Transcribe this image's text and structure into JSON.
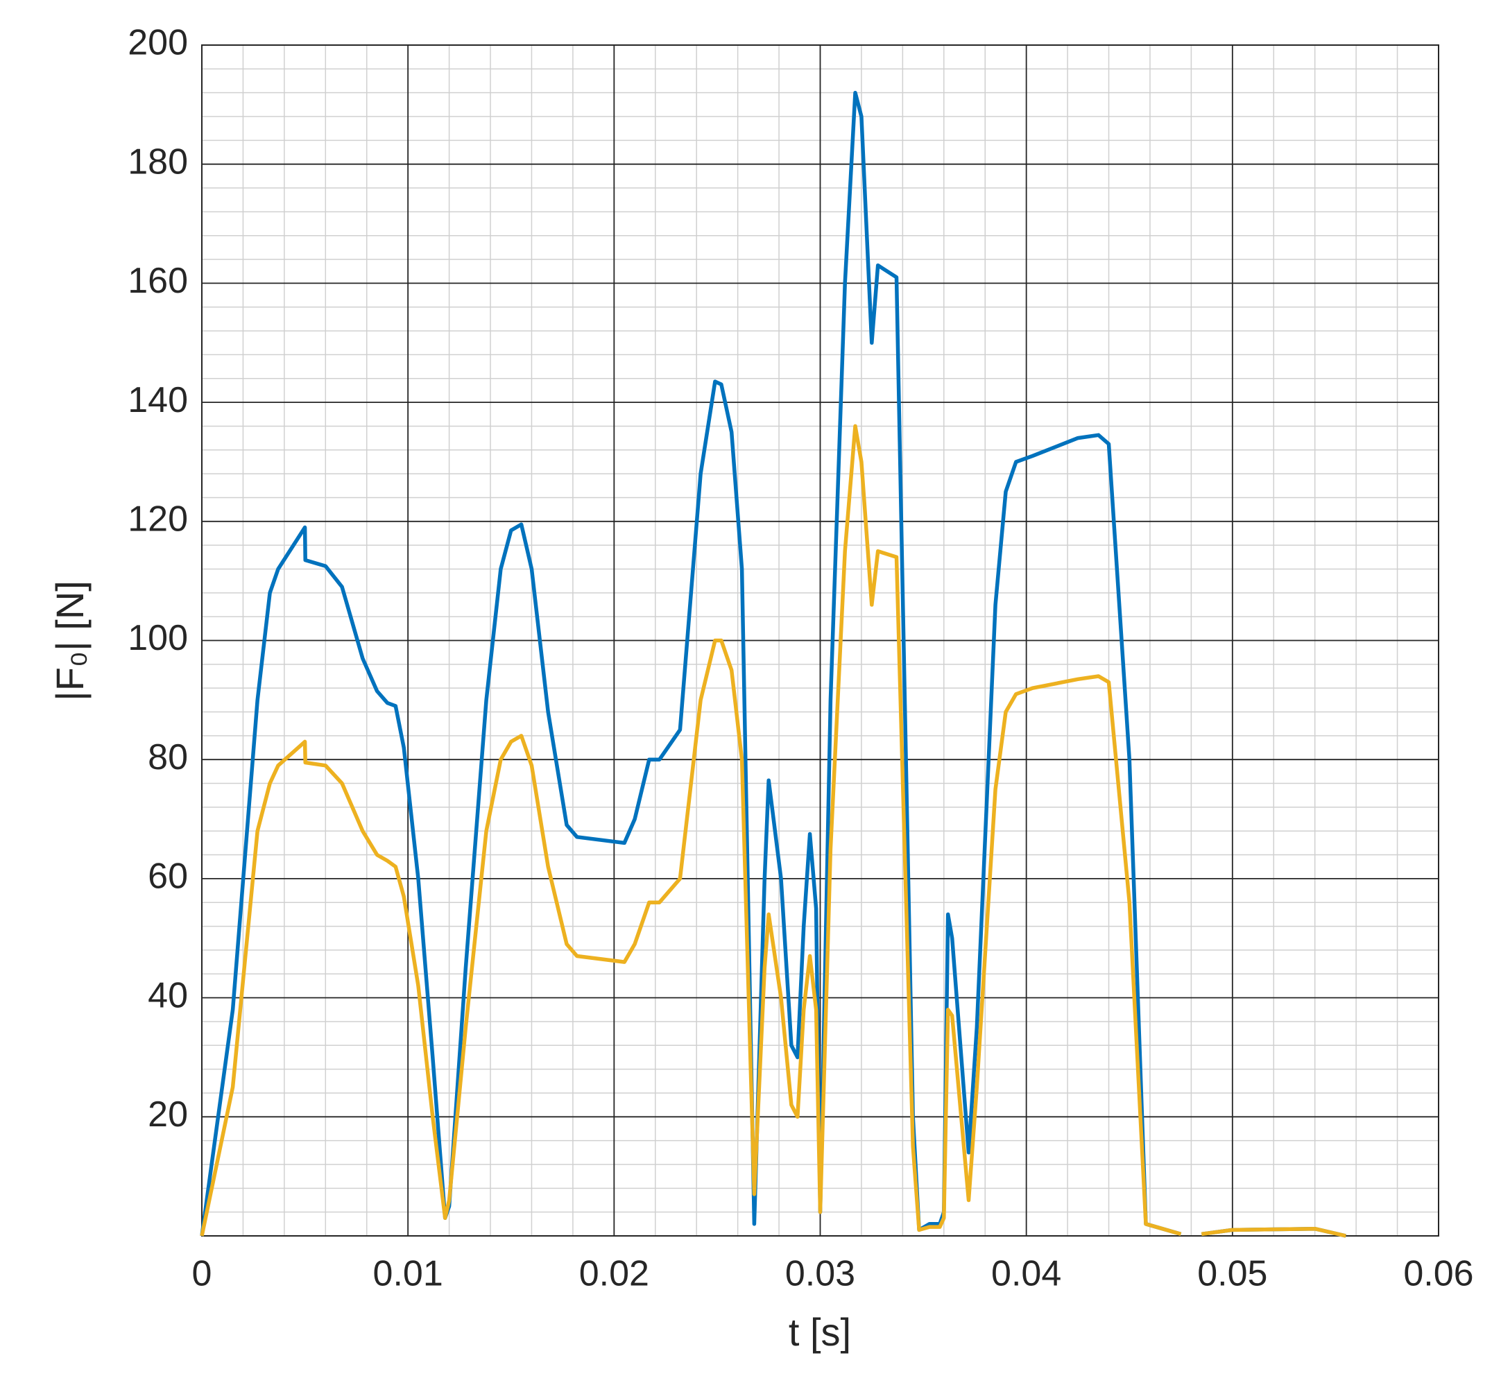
{
  "chart_data": {
    "type": "line",
    "x_label": "t [s]",
    "y_label": "|F₀| [N]",
    "x": [
      0,
      0.0015,
      0.0027,
      0.0033,
      0.0037,
      0.005,
      0.00502,
      0.006,
      0.0068,
      0.0078,
      0.0085,
      0.009,
      0.0094,
      0.0098,
      0.0105,
      0.0112,
      0.0118,
      0.012,
      0.0128,
      0.0138,
      0.0145,
      0.015,
      0.0155,
      0.016,
      0.0168,
      0.0177,
      0.0182,
      0.0205,
      0.021,
      0.0217,
      0.0222,
      0.0232,
      0.0242,
      0.0249,
      0.0252,
      0.0257,
      0.0262,
      0.0268,
      0.0273,
      0.0275,
      0.0281,
      0.0286,
      0.0289,
      0.0292,
      0.0295,
      0.0298,
      0.03,
      0.0305,
      0.0312,
      0.0317,
      0.032,
      0.0325,
      0.0328,
      0.0337,
      0.0345,
      0.0348,
      0.0353,
      0.0358,
      0.036,
      0.0362,
      0.0364,
      0.0372,
      0.0376,
      0.0385,
      0.039,
      0.0395,
      0.0403,
      0.0425,
      0.0435,
      0.044,
      0.045,
      0.0458,
      0.0475,
      0.048,
      0.0485,
      0.05,
      0.054,
      0.0555
    ],
    "series": [
      {
        "color": "#0072bd",
        "values": [
          0,
          38,
          90,
          108,
          112,
          119,
          113.5,
          112.5,
          109,
          97,
          91.5,
          89.5,
          89,
          82,
          60,
          30,
          3,
          5,
          45,
          90,
          112,
          118.5,
          119.5,
          112,
          88,
          69,
          67,
          66,
          70,
          80,
          80,
          85,
          128,
          143.5,
          143,
          135,
          112,
          2,
          60,
          76.5,
          60,
          32,
          30,
          52,
          67.5,
          55,
          4,
          90,
          160,
          192,
          188,
          150,
          163,
          161,
          20,
          1,
          2,
          2,
          4,
          54,
          50,
          14,
          35,
          106,
          125,
          130,
          131,
          134,
          134.5,
          133,
          80,
          2,
          0.3,
          null,
          0.3,
          1,
          1.2,
          0
        ]
      },
      {
        "color": "#edb120",
        "values": [
          0,
          25,
          68,
          76,
          79,
          83,
          79.5,
          79,
          76,
          68,
          64,
          63,
          62,
          57,
          42,
          20,
          3,
          6,
          35,
          68,
          80,
          83,
          84,
          79,
          62,
          49,
          47,
          46,
          49,
          56,
          56,
          60,
          90,
          100,
          100,
          95,
          80,
          7,
          45,
          54,
          40,
          22,
          20,
          38,
          47,
          38,
          4,
          65,
          115,
          136,
          130,
          106,
          115,
          114,
          15,
          1,
          1.5,
          1.5,
          3,
          38,
          37,
          6,
          25,
          75,
          88,
          91,
          92,
          93.5,
          94,
          93,
          56,
          2,
          0.3,
          null,
          0.3,
          1,
          1.2,
          0
        ]
      }
    ],
    "xlim": [
      0,
      0.06
    ],
    "xticks": [
      0,
      0.01,
      0.02,
      0.03,
      0.04,
      0.05,
      0.06
    ],
    "ylim": [
      0,
      200
    ],
    "yticks": [
      20,
      40,
      60,
      80,
      100,
      120,
      140,
      160,
      180,
      200
    ],
    "grid": true,
    "minor_grid": true
  }
}
